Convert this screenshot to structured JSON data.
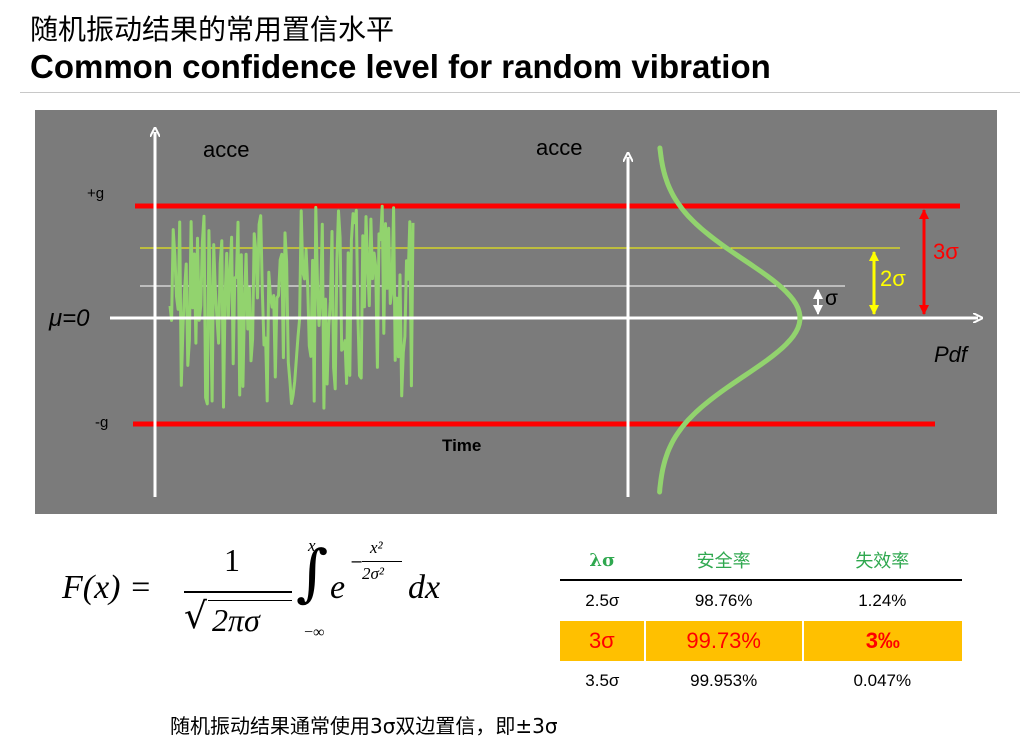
{
  "title": {
    "cn": "随机振动结果的常用置信水平",
    "en": "Common confidence level for random vibration"
  },
  "diagram": {
    "left_axis_label": "acce",
    "right_axis_label": "acce",
    "plus_g": "+g",
    "minus_g": "-g",
    "mu_label": "μ=0",
    "time_label": "Time",
    "pdf_label": "Pdf",
    "sigma1": "σ",
    "sigma2": "2σ",
    "sigma3": "3σ",
    "colors": {
      "background": "#7b7b7b",
      "limit_lines": "#ff0000",
      "two_sigma_line": "#ffff00",
      "one_sigma_line": "#ffffff",
      "signal": "#92d36e",
      "axes": "#ffffff"
    }
  },
  "formula": {
    "lhs": "F(x) =",
    "numerator": "1",
    "denominator": "2πσ",
    "upper_limit": "x",
    "lower_limit": "−∞",
    "exp_base": "e",
    "exp_num": "x²",
    "exp_den": "2σ²",
    "differential": "dx"
  },
  "table": {
    "headers": [
      "λσ",
      "安全率",
      "失效率"
    ],
    "rows": [
      [
        "2.5σ",
        "98.76%",
        "1.24%"
      ],
      [
        "3σ",
        "99.73%",
        "3‰"
      ],
      [
        "3.5σ",
        "99.953%",
        "0.047%"
      ]
    ],
    "highlight_color": "#ffc000"
  },
  "footer": "随机振动结果通常使用3σ双边置信，即±3σ"
}
